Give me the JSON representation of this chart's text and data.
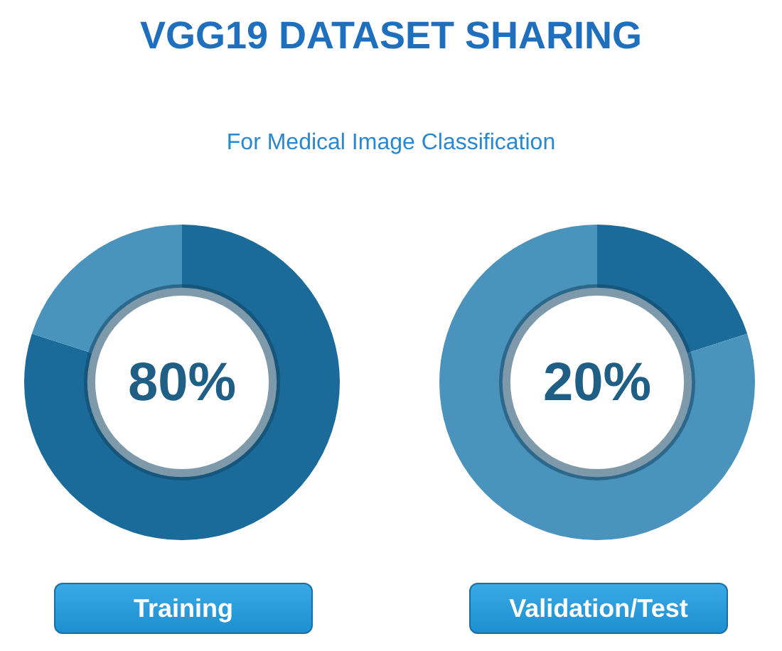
{
  "chart_data": [
    {
      "type": "donut",
      "title": "VGG19 DATASET SHARING",
      "subtitle": "For Medical Image Classification",
      "xlabel": "Training",
      "annotations": [
        "80%"
      ],
      "categories": [
        null,
        null
      ],
      "values": [
        80,
        20
      ],
      "colors": [
        "#1a6b9a",
        "#4a93bd"
      ]
    },
    {
      "type": "donut",
      "xlabel": "Validation/Test",
      "annotations": [
        "20%"
      ],
      "categories": [
        null,
        null
      ],
      "values": [
        20,
        80
      ],
      "colors": [
        "#1a6b9a",
        "#4a93bd"
      ]
    }
  ]
}
